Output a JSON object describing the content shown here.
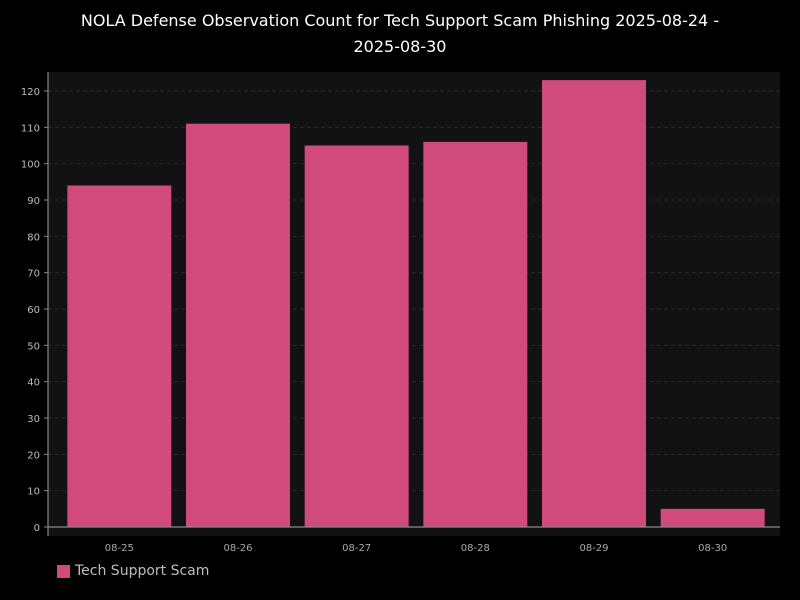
{
  "chart_data": {
    "type": "bar",
    "title_line1": "NOLA Defense Observation Count for Tech Support Scam Phishing 2025-08-24 -",
    "title_line2": "2025-08-30",
    "categories": [
      "08-25",
      "08-26",
      "08-27",
      "08-28",
      "08-29",
      "08-30"
    ],
    "series": [
      {
        "name": "Tech Support Scam",
        "values": [
          94,
          111,
          105,
          106,
          123,
          5
        ],
        "color": "#d04a7c"
      }
    ],
    "xlabel": "",
    "ylabel": "",
    "ylim": [
      0,
      125
    ],
    "yticks": [
      0,
      10,
      20,
      30,
      40,
      50,
      60,
      70,
      80,
      90,
      100,
      110,
      120
    ],
    "grid": true,
    "legend_position": "bottom-left",
    "colors": {
      "background": "#000000",
      "plot_background": "#121212",
      "grid": "#2a2a2a",
      "text": "#ffffff"
    }
  }
}
